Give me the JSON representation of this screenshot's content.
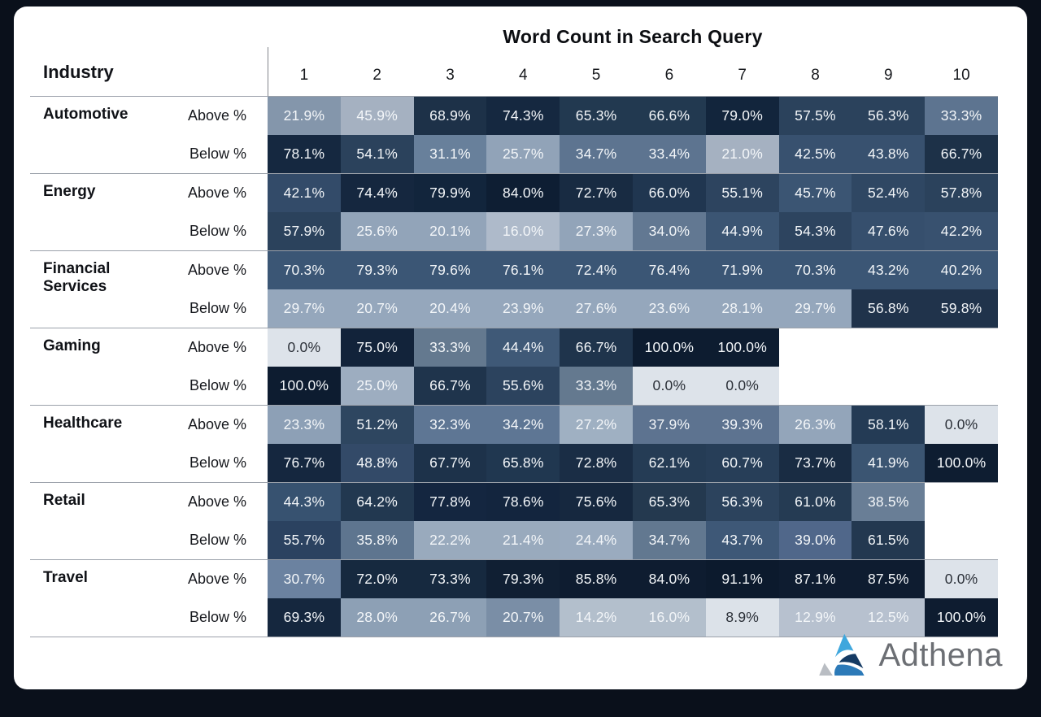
{
  "header": {
    "title": "Word Count in Search Query",
    "industry_label": "Industry",
    "columns": [
      "1",
      "2",
      "3",
      "4",
      "5",
      "6",
      "7",
      "8",
      "9",
      "10"
    ]
  },
  "chart_data": {
    "type": "heatmap",
    "title": "Word Count in Search Query",
    "x_categories": [
      "1",
      "2",
      "3",
      "4",
      "5",
      "6",
      "7",
      "8",
      "9",
      "10"
    ],
    "value_unit": "%",
    "color_scale": {
      "low": "#dde3ea",
      "high": "#0d1c30"
    },
    "groups": [
      {
        "industry": "Automotive",
        "rows": [
          {
            "label": "Above %",
            "values": [
              21.9,
              45.9,
              68.9,
              74.3,
              65.3,
              66.6,
              79.0,
              57.5,
              56.3,
              33.3
            ],
            "colors": [
              "#8496ab",
              "#a5b1c1",
              "#1d3148",
              "#152840",
              "#223950",
              "#223950",
              "#12253c",
              "#2b425c",
              "#2b425c",
              "#5d7490"
            ]
          },
          {
            "label": "Below %",
            "values": [
              78.1,
              54.1,
              31.1,
              25.7,
              34.7,
              33.4,
              21.0,
              42.5,
              43.8,
              66.7
            ],
            "colors": [
              "#152840",
              "#2b425c",
              "#68809b",
              "#91a3b8",
              "#5d7490",
              "#5d7490",
              "#a5b1c1",
              "#38516f",
              "#38516f",
              "#1d3148"
            ]
          }
        ]
      },
      {
        "industry": "Energy",
        "rows": [
          {
            "label": "Above %",
            "values": [
              42.1,
              74.4,
              79.9,
              84.0,
              72.7,
              66.0,
              55.1,
              45.7,
              52.4,
              57.8
            ],
            "colors": [
              "#334b69",
              "#15273f",
              "#12253c",
              "#0e1e33",
              "#182b42",
              "#203650",
              "#2d445f",
              "#3b5573",
              "#2f4763",
              "#2b425c"
            ]
          },
          {
            "label": "Below %",
            "values": [
              57.9,
              25.6,
              20.1,
              16.0,
              27.3,
              34.0,
              44.9,
              54.3,
              47.6,
              42.2
            ],
            "colors": [
              "#2b425c",
              "#92a4b9",
              "#92a4b9",
              "#aebaca",
              "#92a4b9",
              "#627892",
              "#3b5573",
              "#2d445f",
              "#364f6d",
              "#38516f"
            ]
          }
        ]
      },
      {
        "industry": "Financial Services",
        "rows": [
          {
            "label": "Above %",
            "values": [
              70.3,
              79.3,
              79.6,
              76.1,
              72.4,
              76.4,
              71.9,
              70.3,
              43.2,
              40.2
            ],
            "colors": [
              "#3b5675",
              "#3b5675",
              "#3b5675",
              "#3b5675",
              "#3b5675",
              "#3b5675",
              "#3b5675",
              "#3b5675",
              "#3b5675",
              "#3b5675"
            ]
          },
          {
            "label": "Below %",
            "values": [
              29.7,
              20.7,
              20.4,
              23.9,
              27.6,
              23.6,
              28.1,
              29.7,
              56.8,
              59.8
            ],
            "colors": [
              "#95a7bc",
              "#95a7bc",
              "#95a7bc",
              "#95a7bc",
              "#95a7bc",
              "#95a7bc",
              "#95a7bc",
              "#95a7bc",
              "#20334b",
              "#20334b"
            ]
          }
        ]
      },
      {
        "industry": "Gaming",
        "rows": [
          {
            "label": "Above %",
            "values": [
              0.0,
              75.0,
              33.3,
              44.4,
              66.7,
              100.0,
              100.0,
              null,
              null,
              null
            ],
            "colors": [
              "#dde3ea",
              "#12233a",
              "#64798f",
              "#3f5977",
              "#1f344c",
              "#0d1c30",
              "#0d1c30",
              null,
              null,
              null
            ]
          },
          {
            "label": "Below %",
            "values": [
              100.0,
              25.0,
              66.7,
              55.6,
              33.3,
              0.0,
              0.0,
              null,
              null,
              null
            ],
            "colors": [
              "#0d1c30",
              "#9dadc0",
              "#1f344c",
              "#2c435e",
              "#64798f",
              "#dde3ea",
              "#dde3ea",
              null,
              null,
              null
            ]
          }
        ]
      },
      {
        "industry": "Healthcare",
        "rows": [
          {
            "label": "Above %",
            "values": [
              23.3,
              51.2,
              32.3,
              34.2,
              27.2,
              37.9,
              39.3,
              26.3,
              58.1,
              0.0
            ],
            "colors": [
              "#8da0b6",
              "#2e4660",
              "#5e7694",
              "#5e7694",
              "#9fb0c2",
              "#5d7390",
              "#5d7390",
              "#93a5ba",
              "#243b55",
              "#dde3ea"
            ]
          },
          {
            "label": "Below %",
            "values": [
              76.7,
              48.8,
              67.7,
              65.8,
              72.8,
              62.1,
              60.7,
              73.7,
              41.9,
              100.0
            ],
            "colors": [
              "#15273f",
              "#334a68",
              "#1d324a",
              "#203750",
              "#1a2d45",
              "#253c55",
              "#273e58",
              "#192c43",
              "#3b5572",
              "#0e1d31"
            ]
          }
        ]
      },
      {
        "industry": "Retail",
        "rows": [
          {
            "label": "Above %",
            "values": [
              44.3,
              64.2,
              77.8,
              78.6,
              75.6,
              65.3,
              56.3,
              61.0,
              38.5,
              null
            ],
            "colors": [
              "#375270",
              "#223850",
              "#142640",
              "#13253e",
              "#16283f",
              "#24394f",
              "#2c435d",
              "#253b53",
              "#697e96",
              null
            ]
          },
          {
            "label": "Below %",
            "values": [
              55.7,
              35.8,
              22.2,
              21.4,
              24.4,
              34.7,
              43.7,
              39.0,
              61.5,
              null
            ],
            "colors": [
              "#2b4260",
              "#5e758f",
              "#99aabd",
              "#99aabd",
              "#9aabbf",
              "#627890",
              "#3e5877",
              "#50678a",
              "#233850",
              null
            ]
          }
        ]
      },
      {
        "industry": "Travel",
        "rows": [
          {
            "label": "Above %",
            "values": [
              30.7,
              72.0,
              73.3,
              79.3,
              85.8,
              84.0,
              91.1,
              87.1,
              87.5,
              0.0
            ],
            "colors": [
              "#6b82a0",
              "#16293f",
              "#16293f",
              "#101f33",
              "#0e1c30",
              "#0e1c30",
              "#0c1a2d",
              "#0e1c30",
              "#0e1c30",
              "#dde3ea"
            ]
          },
          {
            "label": "Below %",
            "values": [
              69.3,
              28.0,
              26.7,
              20.7,
              14.2,
              16.0,
              8.9,
              12.9,
              12.5,
              100.0
            ],
            "colors": [
              "#15273e",
              "#8da0b5",
              "#8da0b5",
              "#7a8ea6",
              "#b3bfcc",
              "#b3bfcc",
              "#dce2e9",
              "#b7c1cf",
              "#b7c1cf",
              "#0e1c30"
            ]
          }
        ]
      }
    ]
  },
  "logo": {
    "text": "Adthena",
    "text_color": "#6c6f74",
    "triangle_colors": {
      "light_blue": "#3fa7dd",
      "dark_navy": "#143a63",
      "mid_blue": "#2c7ab8",
      "gray": "#b9bdc3"
    }
  }
}
